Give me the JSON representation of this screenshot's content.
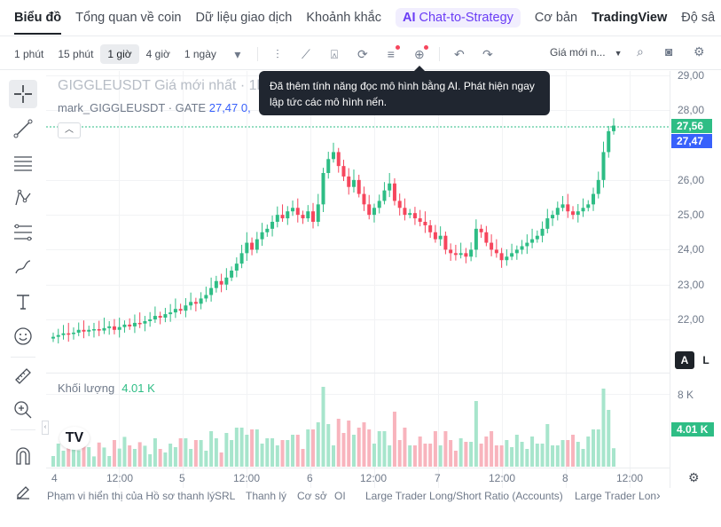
{
  "nav": {
    "items": [
      "Biểu đồ",
      "Tổng quan về coin",
      "Dữ liệu giao dịch",
      "Khoảnh khắc"
    ],
    "ai_label": "Chat-to-Strategy",
    "ai_glyph": "AI",
    "more": [
      "Cơ bản",
      "TradingView",
      "Độ sâ"
    ]
  },
  "toolbar": {
    "timeframes": [
      "1 phút",
      "15 phút",
      "1 giờ",
      "4 giờ",
      "1 ngày"
    ],
    "active_timeframe": "1 giờ",
    "price_selector": "Giá mới n..."
  },
  "tooltip": "Đã thêm tính năng đọc mô hình bằng AI. Phát hiện ngay lập tức các mô hình nến.",
  "legend": {
    "title": "GIGGLEUSDT Giá mới nhất · 1h",
    "title_tail": "%)",
    "mark_prefix": "mark_GIGGLEUSDT · GATE",
    "mark_value": "27,47",
    "mark_tail": "0,"
  },
  "price_axis": {
    "ticks": [
      "29,00",
      "28,00",
      "26,00",
      "25,00",
      "24,00",
      "23,00",
      "22,00"
    ],
    "last_price": "27,56",
    "mark_price": "27,47",
    "last_color": "#2ebd85",
    "mark_color": "#3861fb"
  },
  "mode_buttons": [
    "A",
    "L"
  ],
  "volume": {
    "label": "Khối lượng",
    "value": "4.01 K",
    "axis_tick": "8 K",
    "tag": "4.01 K"
  },
  "time_axis": [
    "4",
    "12:00",
    "5",
    "12:00",
    "6",
    "12:00",
    "7",
    "12:00",
    "8",
    "12:00"
  ],
  "bottom_bar": [
    "Phạm vi hiển thị của Hồ sơ thanh lý",
    "SRL",
    "Thanh lý",
    "Cơ sở",
    "OI",
    "Large Trader Long/Short Ratio (Accounts)",
    "Large Trader Lon"
  ],
  "colors": {
    "up": "#2ebd85",
    "down": "#f6465d",
    "up_vol": "#a7e5cc",
    "down_vol": "#f8b4bd"
  },
  "chart_data": {
    "type": "candlestick",
    "symbol": "GIGGLEUSDT",
    "interval": "1h",
    "ylim": [
      21.2,
      29.0
    ],
    "x_labels": [
      "4",
      "12:00",
      "5",
      "12:00",
      "6",
      "12:00",
      "7",
      "12:00",
      "8",
      "12:00"
    ],
    "close_series": [
      21.5,
      21.55,
      21.6,
      21.58,
      21.62,
      21.7,
      21.65,
      21.7,
      21.72,
      21.68,
      21.75,
      21.8,
      21.7,
      21.78,
      21.85,
      21.8,
      21.9,
      21.88,
      21.95,
      22.0,
      22.1,
      22.05,
      22.15,
      22.2,
      22.3,
      22.25,
      22.4,
      22.5,
      22.45,
      22.6,
      22.7,
      22.9,
      23.1,
      23.0,
      23.2,
      23.4,
      23.6,
      23.9,
      24.2,
      24.0,
      24.3,
      24.5,
      24.6,
      24.8,
      25.0,
      24.9,
      25.1,
      25.2,
      25.0,
      24.9,
      25.1,
      24.8,
      25.3,
      26.2,
      26.6,
      26.8,
      26.4,
      26.1,
      25.8,
      26.0,
      25.6,
      25.3,
      25.0,
      25.2,
      25.4,
      25.7,
      25.9,
      25.4,
      25.2,
      25.0,
      25.05,
      24.9,
      24.8,
      24.7,
      24.5,
      24.3,
      24.4,
      24.0,
      23.9,
      23.85,
      23.9,
      23.8,
      24.0,
      24.6,
      24.5,
      24.2,
      24.0,
      23.9,
      23.7,
      23.8,
      23.9,
      24.0,
      24.1,
      24.2,
      24.3,
      24.4,
      24.6,
      24.9,
      25.0,
      25.2,
      25.3,
      25.1,
      25.0,
      25.1,
      25.2,
      25.3,
      25.6,
      26.0,
      26.8,
      27.4,
      27.56
    ],
    "volume_max_label": "8 K",
    "last_volume": "4.01 K"
  }
}
